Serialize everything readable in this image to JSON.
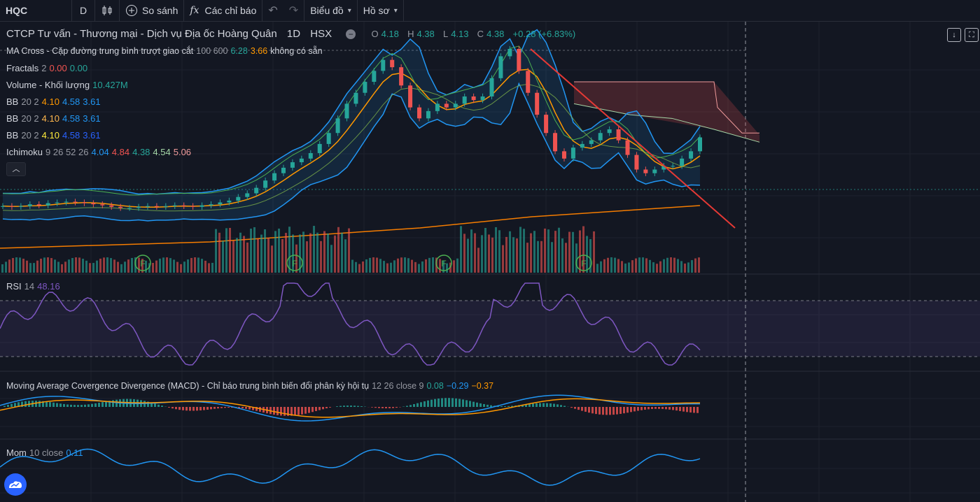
{
  "toolbar": {
    "symbol": "HQC",
    "interval": "D",
    "compare": "So sánh",
    "indicators": "Các chỉ báo",
    "fx_glyph": "fx",
    "chart_menu": "Biểu đồ",
    "profile_menu": "Hồ sơ"
  },
  "header": {
    "name": "CTCP Tư vấn - Thương mại - Dịch vụ Địa ốc Hoàng Quân",
    "interval": "1D",
    "exchange": "HSX",
    "o_label": "O",
    "o": "4.18",
    "h_label": "H",
    "h": "4.38",
    "l_label": "L",
    "l": "4.13",
    "c_label": "C",
    "c": "4.38",
    "change": "+0.28 (+6.83%)"
  },
  "indicators": {
    "ma_cross": {
      "name": "MA Cross - Cặp đường trung bình trượt giao cắt",
      "params": "100 600",
      "v1": "6.28",
      "v2": "3.66",
      "v3": "không có sẵn"
    },
    "fractals": {
      "name": "Fractals",
      "params": "2",
      "v1": "0.00",
      "v2": "0.00"
    },
    "volume": {
      "name": "Volume - Khối lượng",
      "v1": "10.427M"
    },
    "bb1": {
      "name": "BB",
      "params": "20 2",
      "v1": "4.10",
      "v2": "4.58",
      "v3": "3.61"
    },
    "bb2": {
      "name": "BB",
      "params": "20 2",
      "v1": "4.10",
      "v2": "4.58",
      "v3": "3.61"
    },
    "bb3": {
      "name": "BB",
      "params": "20 2",
      "v1": "4.10",
      "v2": "4.58",
      "v3": "3.61"
    },
    "ichimoku": {
      "name": "Ichimoku",
      "params": "9 26 52 26",
      "v1": "4.04",
      "v2": "4.84",
      "v3": "4.38",
      "v4": "4.54",
      "v5": "5.06"
    },
    "rsi": {
      "name": "RSI",
      "params": "14",
      "v1": "48.16"
    },
    "macd": {
      "name": "Moving Average Covergence Divergence (MACD) - Chỉ báo trung bình biến đổi phân kỳ hội tụ",
      "params": "12 26 close 9",
      "v1": "0.08",
      "v2": "−0.29",
      "v3": "−0.37"
    },
    "mom": {
      "name": "Mom",
      "params": "10 close",
      "v1": "0.11"
    }
  },
  "fractal_marker": "F",
  "colors": {
    "background": "#131722",
    "up": "#26a69a",
    "down": "#ef5350",
    "bb_band": "#2196f3",
    "ma_fast": "#ff9800",
    "rsi": "#7e57c2",
    "trendline": "#e53935",
    "cloud": "#ef5350"
  },
  "chart_data": {
    "type": "line",
    "symbol": "HQC",
    "close": [
      2.5,
      2.48,
      2.5,
      2.55,
      2.52,
      2.58,
      2.6,
      2.62,
      2.6,
      2.58,
      2.55,
      2.52,
      2.48,
      2.45,
      2.45,
      2.48,
      2.5,
      2.48,
      2.5,
      2.52,
      2.5,
      2.48,
      2.52,
      2.55,
      2.6,
      2.65,
      2.75,
      2.85,
      3.0,
      3.2,
      3.4,
      3.55,
      3.7,
      3.8,
      3.95,
      4.2,
      4.5,
      4.9,
      5.3,
      5.6,
      5.9,
      6.2,
      6.5,
      6.3,
      5.8,
      5.2,
      4.9,
      5.1,
      5.3,
      5.2,
      5.3,
      5.5,
      5.4,
      5.5,
      6.0,
      6.6,
      6.8,
      6.2,
      5.6,
      5.0,
      4.5,
      4.0,
      3.8,
      4.1,
      4.2,
      4.3,
      4.5,
      4.6,
      4.3,
      3.9,
      3.5,
      3.4,
      3.5,
      3.6,
      3.6,
      3.8,
      4.0,
      4.38
    ],
    "ichimoku_cloud_edge": [
      5.9,
      5.9,
      5.9,
      5.9,
      5.2,
      5.2,
      4.5,
      4.5,
      4.5
    ],
    "rsi_levels": [
      70,
      30
    ],
    "price_last": 4.38
  }
}
